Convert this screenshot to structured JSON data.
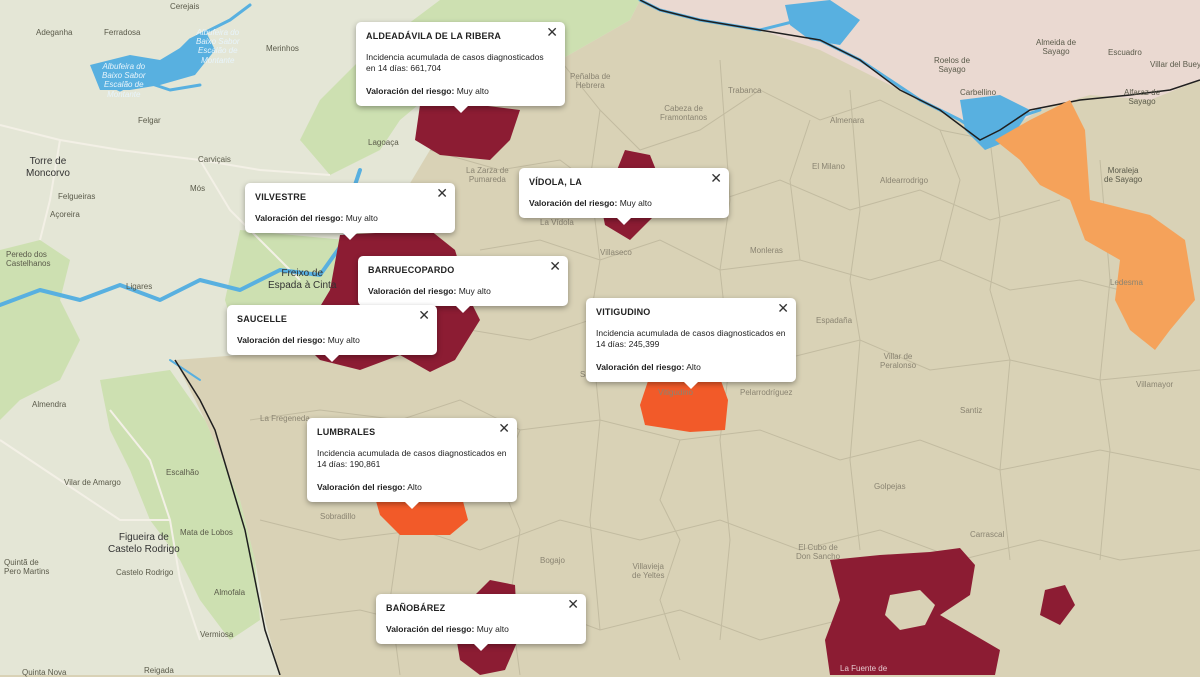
{
  "colors": {
    "land_spain": "#d9d2b6",
    "land_portugal": "#cfe0b4",
    "land_north": "#e9dcd6",
    "water": "#58b0e0",
    "muy_alto": "#8c1c33",
    "alto": "#f25a29",
    "medio": "#f5a25a"
  },
  "places": {
    "cerejais": "Cerejais",
    "ferradosa": "Ferradosa",
    "adeganha": "Adeganha",
    "albufeira_1": "Albufeira do",
    "albufeira_2": "Baixo Sabor",
    "albufeira_3": "Escalão de",
    "albufeira_4": "Montante",
    "albufeira_b1": "Albufeira do",
    "albufeira_b2": "Baixo Sabor",
    "albufeira_b3": "Escalão de",
    "albufeira_b4": "Montante",
    "merinhos": "Merinhos",
    "felgar": "Felgar",
    "lagoaca": "Lagoaça",
    "torre_1": "Torre de",
    "torre_2": "Moncorvo",
    "carvicais": "Carviçais",
    "mos": "Mós",
    "felgueiras": "Felgueiras",
    "acoreira": "Açoreira",
    "peredo_1": "Peredo dos",
    "peredo_2": "Castelhanos",
    "ligares": "Ligares",
    "freixo_1": "Freixo de",
    "freixo_2": "Espada à Cinta",
    "almendra": "Almendra",
    "escalhao": "Escalhão",
    "vilar": "Vilar de Amargo",
    "mata": "Mata de Lobos",
    "figueira_1": "Figueira de",
    "figueira_2": "Castelo Rodrigo",
    "castelo": "Castelo Rodrigo",
    "quinta_1": "Quintã de",
    "quinta_2": "Pero Martins",
    "almofala": "Almofala",
    "vermiosa": "Vermiosa",
    "reigada": "Reigada",
    "quinta_nova": "Quinta Nova",
    "almeida_1": "Almeida de",
    "almeida_2": "Sayago",
    "escuadro": "Escuadro",
    "roelos_1": "Roelos de",
    "roelos_2": "Sayago",
    "villar_1": "Villar del Buey",
    "carbellino": "Carbellino",
    "alfaraz_1": "Alfaraz de",
    "alfaraz_2": "Sayago",
    "moraleja_1": "Moraleja",
    "moraleja_2": "de Sayago",
    "ledesma": "Ledesma",
    "vitigudino": "Vitigudino",
    "el_cubo_1": "El Cubo de",
    "el_cubo_2": "Don Sancho",
    "la_fuente": "La Fuente de",
    "villavieja_1": "Villavieja",
    "villavieja_2": "de Yeltes",
    "bogajo": "Bogajo",
    "sobradillo": "Sobradillo",
    "la_fregeneda": "La Fregeneda",
    "saldeana": "Saldeana",
    "pelarrodriguez": "Pelarrodríguez",
    "villaseco": "Villaseco",
    "la_vidola": "La Vídola",
    "monleras": "Monleras",
    "almenara": "Almenara",
    "el_milano": "El Milano",
    "trabanca": "Trabanca",
    "cabeza": "Cabeza de",
    "cabeza_2": "Framontanos",
    "penalba": "Peñalba de",
    "penalba_2": "Hebrera",
    "espadana": "Espadaña",
    "villar_peralonso": "Villar de",
    "villar_peralonso_2": "Peralonso",
    "aldearrodrigo": "Aldearrodrigo",
    "zarza": "La Zarza de",
    "zarza_2": "Pumareda",
    "santiz": "Santiz",
    "golpejas": "Golpejas",
    "carrascal": "Carrascal",
    "villamayor": "Villamayor"
  },
  "popups": [
    {
      "id": "aldeadavila",
      "title": "ALDEADÁVILA DE LA RIBERA",
      "incidence": "Incidencia acumulada de casos diagnosticados en 14 días: 661,704",
      "risk_label": "Valoración del riesgo:",
      "risk_value": "Muy alto"
    },
    {
      "id": "vilvestre",
      "title": "VILVESTRE",
      "risk_label": "Valoración del riesgo:",
      "risk_value": "Muy alto"
    },
    {
      "id": "vidola",
      "title": "VÍDOLA, LA",
      "risk_label": "Valoración del riesgo:",
      "risk_value": "Muy alto"
    },
    {
      "id": "barruecopardo",
      "title": "BARRUECOPARDO",
      "risk_label": "Valoración del riesgo:",
      "risk_value": "Muy alto"
    },
    {
      "id": "saucelle",
      "title": "SAUCELLE",
      "risk_label": "Valoración del riesgo:",
      "risk_value": "Muy alto"
    },
    {
      "id": "vitigudino",
      "title": "VITIGUDINO",
      "incidence": "Incidencia acumulada de casos diagnosticados en 14 días: 245,399",
      "risk_label": "Valoración del riesgo:",
      "risk_value": "Alto"
    },
    {
      "id": "lumbrales",
      "title": "LUMBRALES",
      "incidence": "Incidencia acumulada de casos diagnosticados en 14 días: 190,861",
      "risk_label": "Valoración del riesgo:",
      "risk_value": "Alto"
    },
    {
      "id": "banobarez",
      "title": "BAÑOBÁREZ",
      "risk_label": "Valoración del riesgo:",
      "risk_value": "Muy alto"
    }
  ],
  "close_glyph": "✕"
}
